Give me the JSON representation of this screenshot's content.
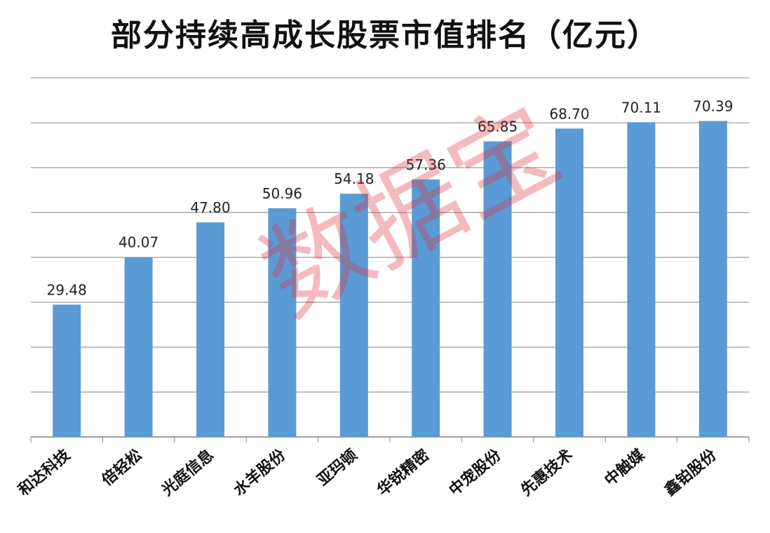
{
  "colors": {
    "bar": "#5B9BD5",
    "grid": "#808080",
    "axis": "#808080",
    "text": "#222222",
    "watermark": "#E0303A"
  },
  "watermark": "数据宝",
  "chart_data": {
    "type": "bar",
    "title": "部分持续高成长股票市值排名（亿元）",
    "xlabel": "",
    "ylabel": "",
    "ylim": [
      0,
      70
    ],
    "grid": true,
    "categories": [
      "和达科技",
      "倍轻松",
      "光庭信息",
      "水羊股份",
      "亚玛顿",
      "华锐精密",
      "中宠股份",
      "先惠技术",
      "中触媒",
      "鑫铂股份"
    ],
    "values": [
      29.48,
      40.07,
      47.8,
      50.96,
      54.18,
      57.36,
      65.85,
      68.7,
      70.11,
      70.39
    ],
    "value_labels": [
      "29.48",
      "40.07",
      "47.80",
      "50.96",
      "54.18",
      "57.36",
      "65.85",
      "68.70",
      "70.11",
      "70.39"
    ]
  }
}
